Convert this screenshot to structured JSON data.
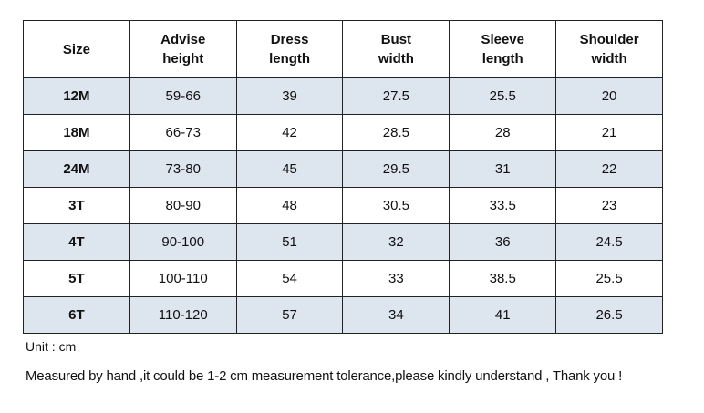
{
  "table": {
    "columns": [
      [
        "Size"
      ],
      [
        "Advise",
        "height"
      ],
      [
        "Dress",
        "length"
      ],
      [
        "Bust",
        "width"
      ],
      [
        "Sleeve",
        "length"
      ],
      [
        "Shoulder",
        "width"
      ]
    ],
    "rows": [
      [
        "12M",
        "59-66",
        "39",
        "27.5",
        "25.5",
        "20"
      ],
      [
        "18M",
        "66-73",
        "42",
        "28.5",
        "28",
        "21"
      ],
      [
        "24M",
        "73-80",
        "45",
        "29.5",
        "31",
        "22"
      ],
      [
        "3T",
        "80-90",
        "48",
        "30.5",
        "33.5",
        "23"
      ],
      [
        "4T",
        "90-100",
        "51",
        "32",
        "36",
        "24.5"
      ],
      [
        "5T",
        "100-110",
        "54",
        "33",
        "38.5",
        "25.5"
      ],
      [
        "6T",
        "110-120",
        "57",
        "34",
        "41",
        "26.5"
      ]
    ]
  },
  "unit": "Unit : cm",
  "note": "Measured by hand ,it could be 1-2 cm measurement tolerance,please kindly understand , Thank you !"
}
